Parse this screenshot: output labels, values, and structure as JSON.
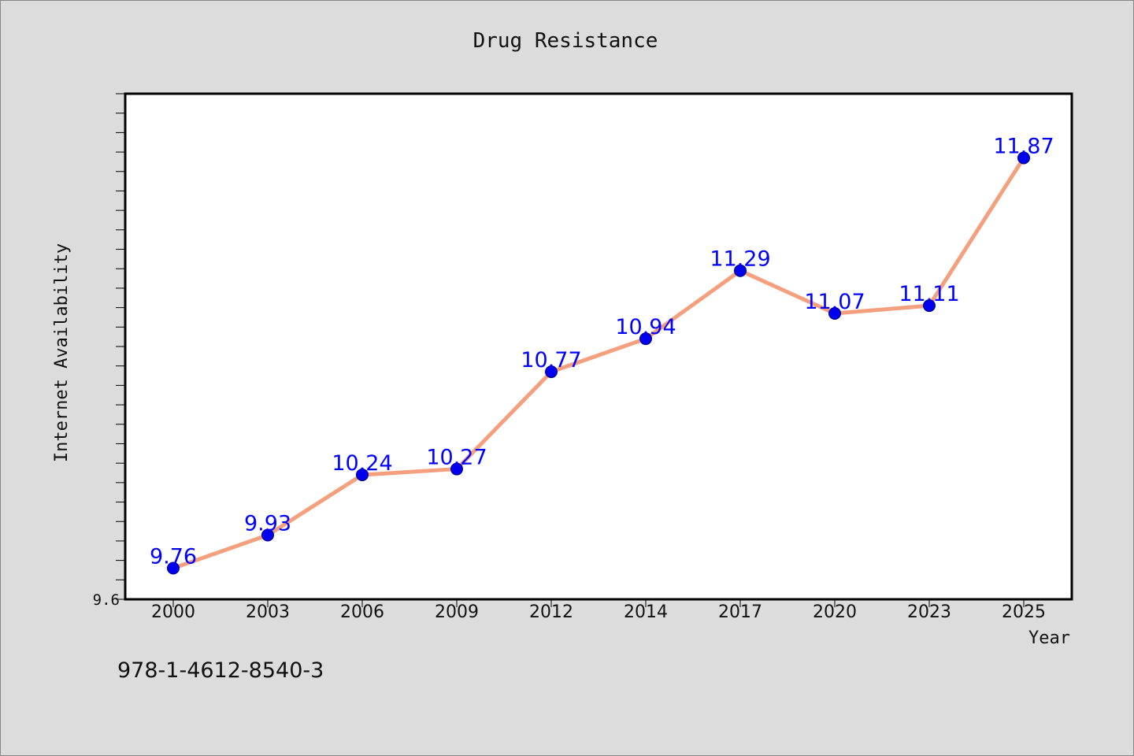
{
  "chart_data": {
    "type": "line",
    "title": "Drug Resistance",
    "xlabel": "Year",
    "ylabel": "Internet Availability",
    "categories": [
      "2000",
      "2003",
      "2006",
      "2009",
      "2012",
      "2014",
      "2017",
      "2020",
      "2023",
      "2025"
    ],
    "series": [
      {
        "values": [
          9.76,
          9.93,
          10.24,
          10.27,
          10.77,
          10.94,
          11.29,
          11.07,
          11.11,
          11.87
        ],
        "data_labels": [
          "9.76",
          "9.93",
          "10.24",
          "10.27",
          "10.77",
          "10.94",
          "11.29",
          "11.07",
          "11.11",
          "11.87"
        ]
      }
    ],
    "ylim": [
      9.6,
      12.2
    ],
    "y_tick_label": "9.6",
    "y_minor_tick_step": 0.1,
    "grid": false,
    "legend": "none",
    "colors": {
      "line": "#f4a07e",
      "marker": "#0000ee",
      "data_label": "#0000ff",
      "plot_background": "#ffffff",
      "page_background": "#dcdcdc"
    }
  },
  "isbn_text": "978-1-4612-8540-3"
}
